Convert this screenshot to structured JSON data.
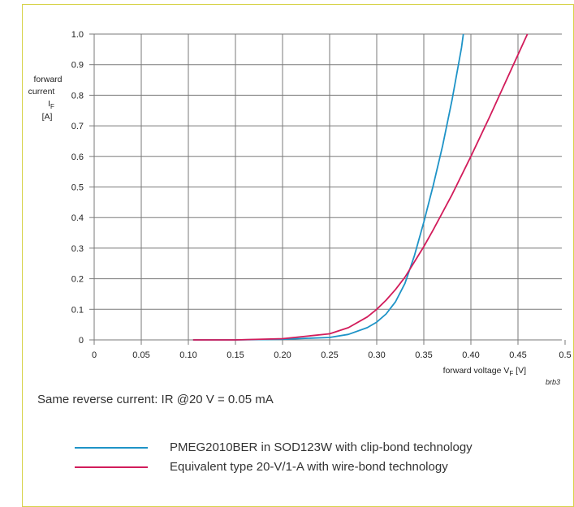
{
  "note": "Same reverse current: IR @20 V = 0.05 mA",
  "legend": [
    {
      "label": "PMEG2010BER in SOD123W with clip-bond technology",
      "color": "#1e93c7"
    },
    {
      "label": "Equivalent type 20-V/1-A with wire-bond technology",
      "color": "#d21c5b"
    }
  ],
  "chart_data": {
    "type": "line",
    "y_axis_label_lines": [
      "forward",
      "current",
      "I",
      "[A]"
    ],
    "y_axis_symbol_subscript": "F",
    "x_axis_label_prefix": "forward voltage V",
    "x_axis_label_subscript": "F",
    "x_axis_label_suffix": " [V]",
    "figure_code": "brb3",
    "xlim": [
      0,
      0.5
    ],
    "ylim": [
      0,
      1.0
    ],
    "x_ticks": [
      "0",
      "0.05",
      "0.10",
      "0.15",
      "0.20",
      "0.25",
      "0.30",
      "0.35",
      "0.40",
      "0.45",
      "0.5"
    ],
    "x_tick_values": [
      0,
      0.05,
      0.1,
      0.15,
      0.2,
      0.25,
      0.3,
      0.35,
      0.4,
      0.45,
      0.5
    ],
    "y_ticks": [
      "0",
      "0.1",
      "0.2",
      "0.3",
      "0.4",
      "0.5",
      "0.6",
      "0.7",
      "0.8",
      "0.9",
      "1.0"
    ],
    "y_tick_values": [
      0,
      0.1,
      0.2,
      0.3,
      0.4,
      0.5,
      0.6,
      0.7,
      0.8,
      0.9,
      1.0
    ],
    "grid": true,
    "series": [
      {
        "name": "PMEG2010BER in SOD123W with clip-bond technology",
        "color": "#1e93c7",
        "x": [
          0.105,
          0.15,
          0.2,
          0.25,
          0.27,
          0.29,
          0.3,
          0.31,
          0.32,
          0.33,
          0.34,
          0.35,
          0.36,
          0.37,
          0.38,
          0.39,
          0.392
        ],
        "y": [
          0.0,
          0.0,
          0.002,
          0.008,
          0.018,
          0.04,
          0.058,
          0.085,
          0.125,
          0.185,
          0.275,
          0.385,
          0.505,
          0.635,
          0.785,
          0.955,
          1.0
        ]
      },
      {
        "name": "Equivalent type 20-V/1-A with wire-bond technology",
        "color": "#d21c5b",
        "x": [
          0.105,
          0.15,
          0.2,
          0.25,
          0.27,
          0.29,
          0.3,
          0.31,
          0.32,
          0.33,
          0.34,
          0.35,
          0.36,
          0.38,
          0.4,
          0.42,
          0.44,
          0.46
        ],
        "y": [
          0.0,
          0.0,
          0.004,
          0.02,
          0.04,
          0.075,
          0.1,
          0.13,
          0.165,
          0.205,
          0.255,
          0.305,
          0.36,
          0.475,
          0.6,
          0.73,
          0.865,
          1.0
        ]
      }
    ]
  }
}
